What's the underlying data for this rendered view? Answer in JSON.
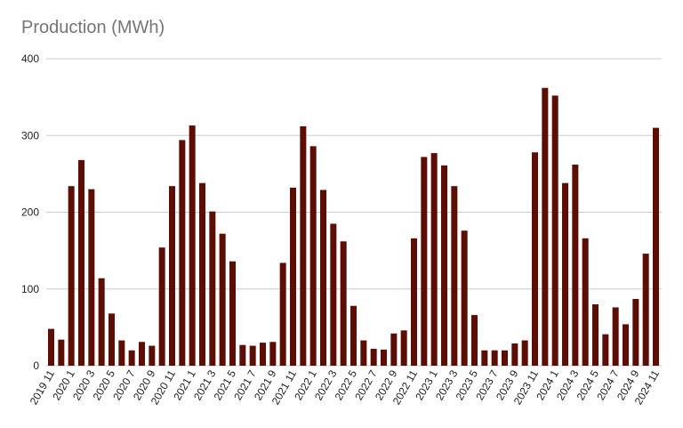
{
  "chart_data": {
    "type": "bar",
    "title": "Production (MWh)",
    "xlabel": "",
    "ylabel": "",
    "ylim": [
      0,
      400
    ],
    "yticks": [
      "0",
      "100",
      "200",
      "300",
      "400"
    ],
    "grid": true,
    "legend": "none",
    "bar_color": "#5c0e05",
    "categories": [
      "2019 11",
      "2019 12",
      "2020 1",
      "2020 2",
      "2020 3",
      "2020 4",
      "2020 5",
      "2020 6",
      "2020 7",
      "2020 8",
      "2020 9",
      "2020 10",
      "2020 11",
      "2020 12",
      "2021 1",
      "2021 2",
      "2021 3",
      "2021 4",
      "2021 5",
      "2021 6",
      "2021 7",
      "2021 8",
      "2021 9",
      "2021 10",
      "2021 11",
      "2021 12",
      "2022 1",
      "2022 2",
      "2022 3",
      "2022 4",
      "2022 5",
      "2022 6",
      "2022 7",
      "2022 8",
      "2022 9",
      "2022 10",
      "2022 11",
      "2022 12",
      "2023 1",
      "2023 2",
      "2023 3",
      "2023 4",
      "2023 5",
      "2023 6",
      "2023 7",
      "2023 8",
      "2023 9",
      "2023 10",
      "2023 11",
      "2023 12",
      "2024 1",
      "2024 2",
      "2024 3",
      "2024 4",
      "2024 5",
      "2024 6",
      "2024 7",
      "2024 8",
      "2024 9",
      "2024 10",
      "2024 11"
    ],
    "values": [
      48,
      34,
      234,
      268,
      230,
      114,
      68,
      33,
      20,
      31,
      26,
      154,
      234,
      294,
      313,
      238,
      201,
      172,
      136,
      27,
      26,
      30,
      31,
      134,
      232,
      312,
      286,
      229,
      185,
      162,
      78,
      33,
      22,
      21,
      42,
      46,
      166,
      272,
      277,
      261,
      234,
      176,
      66,
      20,
      20,
      20,
      29,
      33,
      278,
      362,
      352,
      238,
      262,
      166,
      80,
      41,
      76,
      54,
      87,
      146,
      310
    ],
    "label_every": 2
  }
}
